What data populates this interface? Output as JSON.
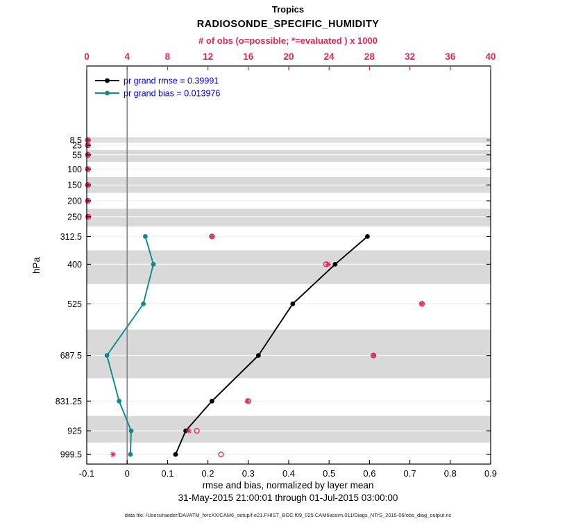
{
  "header": {
    "region": "Tropics",
    "variable": "RADIOSONDE_SPECIFIC_HUMIDITY",
    "obs_axis_label": "# of obs (o=possible; *=evaluated ) x 1000"
  },
  "footer": {
    "xlabel": "rmse and bias, normalized by layer mean",
    "date_range": "31-May-2015 21:00:01 through 01-Jul-2015 03:00:00",
    "data_file": "data file: /Users/raeder/DAI/ATM_forcXX/CAM6_setup/f.e21.FHIST_BGC.f09_025.CAM6assim.011/Diags_NTrS_2015-06/obs_diag_output.nc"
  },
  "chart_data": {
    "type": "line",
    "title": "Tropics",
    "subtitle": "RADIOSONDE_SPECIFIC_HUMIDITY",
    "top_axis": {
      "label": "# of obs (o=possible; *=evaluated ) x 1000",
      "tick_values": [
        0,
        4,
        8,
        12,
        16,
        20,
        24,
        28,
        32,
        36,
        40
      ],
      "tick_labels": [
        "0",
        "4",
        "8",
        "12",
        "16",
        "20",
        "24",
        "28",
        "32",
        "36",
        "40"
      ],
      "range": [
        0,
        40
      ]
    },
    "bottom_axis": {
      "label": "rmse and bias, normalized by layer mean",
      "tick_values": [
        -0.1,
        0,
        0.1,
        0.2,
        0.3,
        0.4,
        0.5,
        0.6,
        0.7,
        0.8,
        0.9
      ],
      "tick_labels": [
        "-0.1",
        "0",
        "0.1",
        "0.2",
        "0.3",
        "0.4",
        "0.5",
        "0.6",
        "0.7",
        "0.8",
        "0.9"
      ],
      "range": [
        -0.1,
        0.9
      ]
    },
    "left_axis": {
      "label": "hPa",
      "tick_values": [
        8.5,
        25,
        55,
        100,
        150,
        200,
        250,
        312.5,
        400,
        525,
        687.5,
        831.25,
        925,
        999.5
      ],
      "tick_labels": [
        "8.5",
        "25",
        "55",
        "100",
        "150",
        "200",
        "250",
        "312.5",
        "400",
        "525",
        "687.5",
        "831.25",
        "925",
        "999.5"
      ],
      "edge_top": -225,
      "edge_bottom": 1030,
      "direction": "reversed"
    },
    "shaded_layers_hpa": [
      [
        0,
        16.75
      ],
      [
        40,
        77.5
      ],
      [
        125,
        175
      ],
      [
        225,
        281.25
      ],
      [
        356.25,
        462.5
      ],
      [
        606.25,
        759.375
      ],
      [
        878.125,
        962.25
      ]
    ],
    "series": [
      {
        "name": "pr grand rmse = 0.39991",
        "grand_value": 0.39991,
        "color": "#000000",
        "points": [
          {
            "p": 312.5,
            "v": 0.595
          },
          {
            "p": 400,
            "v": 0.515
          },
          {
            "p": 525,
            "v": 0.41
          },
          {
            "p": 687.5,
            "v": 0.325
          },
          {
            "p": 831.25,
            "v": 0.21
          },
          {
            "p": 925,
            "v": 0.145
          },
          {
            "p": 999.5,
            "v": 0.12
          }
        ]
      },
      {
        "name": "pr grand bias = 0.013976",
        "grand_value": 0.013976,
        "color": "#0e8a8a",
        "points": [
          {
            "p": 312.5,
            "v": 0.045
          },
          {
            "p": 400,
            "v": 0.065
          },
          {
            "p": 525,
            "v": 0.04
          },
          {
            "p": 687.5,
            "v": -0.05
          },
          {
            "p": 831.25,
            "v": -0.02
          },
          {
            "p": 925,
            "v": 0.01
          },
          {
            "p": 999.5,
            "v": 0.008
          }
        ]
      }
    ],
    "obs_counts_thousands": {
      "color": "#dc2a55",
      "possible": [
        {
          "p": 8.5,
          "n": 0.1
        },
        {
          "p": 25,
          "n": 0.1
        },
        {
          "p": 55,
          "n": 0.12
        },
        {
          "p": 100,
          "n": 0.12
        },
        {
          "p": 150,
          "n": 0.12
        },
        {
          "p": 200,
          "n": 0.12
        },
        {
          "p": 250,
          "n": 0.15
        },
        {
          "p": 312.5,
          "n": 12.4
        },
        {
          "p": 400,
          "n": 23.7
        },
        {
          "p": 525,
          "n": 33.2
        },
        {
          "p": 687.5,
          "n": 28.4
        },
        {
          "p": 831.25,
          "n": 16.0
        },
        {
          "p": 925,
          "n": 10.9
        },
        {
          "p": 999.5,
          "n": 13.3
        }
      ],
      "evaluated": [
        {
          "p": 8.5,
          "n": 0.1
        },
        {
          "p": 25,
          "n": 0.1
        },
        {
          "p": 55,
          "n": 0.1
        },
        {
          "p": 100,
          "n": 0.1
        },
        {
          "p": 150,
          "n": 0.1
        },
        {
          "p": 200,
          "n": 0.1
        },
        {
          "p": 250,
          "n": 0.12
        },
        {
          "p": 312.5,
          "n": 12.4
        },
        {
          "p": 400,
          "n": 23.9
        },
        {
          "p": 525,
          "n": 33.2
        },
        {
          "p": 687.5,
          "n": 28.4
        },
        {
          "p": 831.25,
          "n": 15.9
        },
        {
          "p": 925,
          "n": 10.1
        },
        {
          "p": 999.5,
          "n": 2.6
        }
      ]
    },
    "colors": {
      "rmse": "#000000",
      "bias": "#0e8a8a",
      "obs": "#dc2a55",
      "legend_text": "#0000cc",
      "zero_line": "#8a7a8a",
      "band": "#d9d9d9",
      "gridline": "#f2f2f2"
    },
    "legend": {
      "entries": [
        "pr grand rmse = 0.39991",
        "pr grand bias = 0.013976"
      ]
    },
    "date_range": "31-May-2015 21:00:01 through 01-Jul-2015 03:00:00"
  }
}
